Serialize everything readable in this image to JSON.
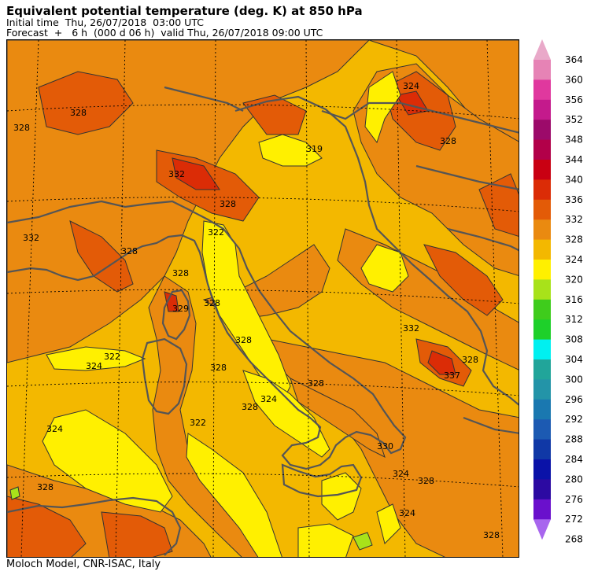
{
  "header": {
    "title": "Equivalent potential temperature (deg. K) at 850 hPa",
    "initial_time": "Initial time  Thu, 26/07/2018  03:00 UTC",
    "forecast": "Forecast  +   6 h  (000 d 06 h)  valid Thu, 26/07/2018 09:00 UTC"
  },
  "footer": {
    "credit": "Moloch Model, CNR-ISAC, Italy"
  },
  "colorbar": {
    "levels": [
      {
        "value": "364",
        "color": "#e9a9c9"
      },
      {
        "value": "360",
        "color": "#e683b5"
      },
      {
        "value": "356",
        "color": "#e0389e"
      },
      {
        "value": "352",
        "color": "#c41a8c"
      },
      {
        "value": "348",
        "color": "#9c0a6a"
      },
      {
        "value": "344",
        "color": "#b20049"
      },
      {
        "value": "340",
        "color": "#c90012"
      },
      {
        "value": "336",
        "color": "#db2c06"
      },
      {
        "value": "332",
        "color": "#e35b07"
      },
      {
        "value": "328",
        "color": "#ea8a10"
      },
      {
        "value": "324",
        "color": "#f3b800"
      },
      {
        "value": "320",
        "color": "#fff000"
      },
      {
        "value": "316",
        "color": "#a8e21a"
      },
      {
        "value": "312",
        "color": "#3fcc1c"
      },
      {
        "value": "308",
        "color": "#1ed02a"
      },
      {
        "value": "304",
        "color": "#00f0f0"
      },
      {
        "value": "300",
        "color": "#21a59a"
      },
      {
        "value": "296",
        "color": "#2394a8"
      },
      {
        "value": "292",
        "color": "#1a78b0"
      },
      {
        "value": "288",
        "color": "#1c5ab2"
      },
      {
        "value": "284",
        "color": "#1038a6"
      },
      {
        "value": "280",
        "color": "#0a12a8"
      },
      {
        "value": "276",
        "color": "#2c0aa2"
      },
      {
        "value": "272",
        "color": "#6a10cc"
      },
      {
        "value": "268",
        "color": "#a866ee"
      }
    ]
  },
  "contour_labels": [
    "328",
    "328",
    "332",
    "324",
    "328",
    "319",
    "328",
    "332",
    "328",
    "322",
    "328",
    "328",
    "329",
    "322",
    "324",
    "328",
    "328",
    "328",
    "324",
    "322",
    "324",
    "328",
    "332",
    "337",
    "328",
    "330",
    "324",
    "328",
    "324",
    "328",
    "328"
  ]
}
